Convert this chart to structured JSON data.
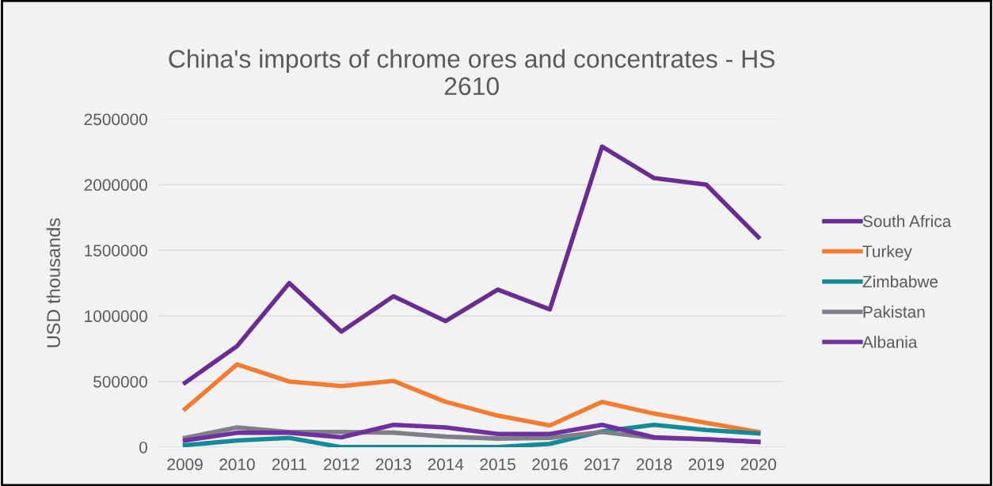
{
  "chart_data": {
    "type": "line",
    "title": "China's imports of chrome ores and concentrates - HS\n2610",
    "ylabel": "USD thousands",
    "categories": [
      "2009",
      "2010",
      "2011",
      "2012",
      "2013",
      "2014",
      "2015",
      "2016",
      "2017",
      "2018",
      "2019",
      "2020"
    ],
    "series": [
      {
        "name": "South Africa",
        "color": "#6a2c91",
        "values": [
          490000,
          770000,
          1250000,
          880000,
          1150000,
          960000,
          1200000,
          1050000,
          2290000,
          2050000,
          2000000,
          1600000
        ]
      },
      {
        "name": "Turkey",
        "color": "#f47c30",
        "values": [
          290000,
          630000,
          500000,
          465000,
          505000,
          345000,
          240000,
          165000,
          345000,
          255000,
          185000,
          115000
        ]
      },
      {
        "name": "Zimbabwe",
        "color": "#138a97",
        "values": [
          15000,
          50000,
          70000,
          0,
          0,
          0,
          0,
          25000,
          120000,
          170000,
          130000,
          105000
        ]
      },
      {
        "name": "Pakistan",
        "color": "#7f7f87",
        "values": [
          70000,
          150000,
          115000,
          115000,
          110000,
          80000,
          65000,
          70000,
          115000,
          70000,
          60000,
          40000
        ]
      },
      {
        "name": "Albania",
        "color": "#7030a0",
        "values": [
          50000,
          110000,
          110000,
          75000,
          170000,
          150000,
          100000,
          100000,
          170000,
          75000,
          60000,
          40000
        ]
      }
    ],
    "ylim": [
      0,
      2500000
    ],
    "yticks": [
      0,
      500000,
      1000000,
      1500000,
      2000000,
      2500000
    ],
    "grid": "y",
    "legend": "right"
  }
}
